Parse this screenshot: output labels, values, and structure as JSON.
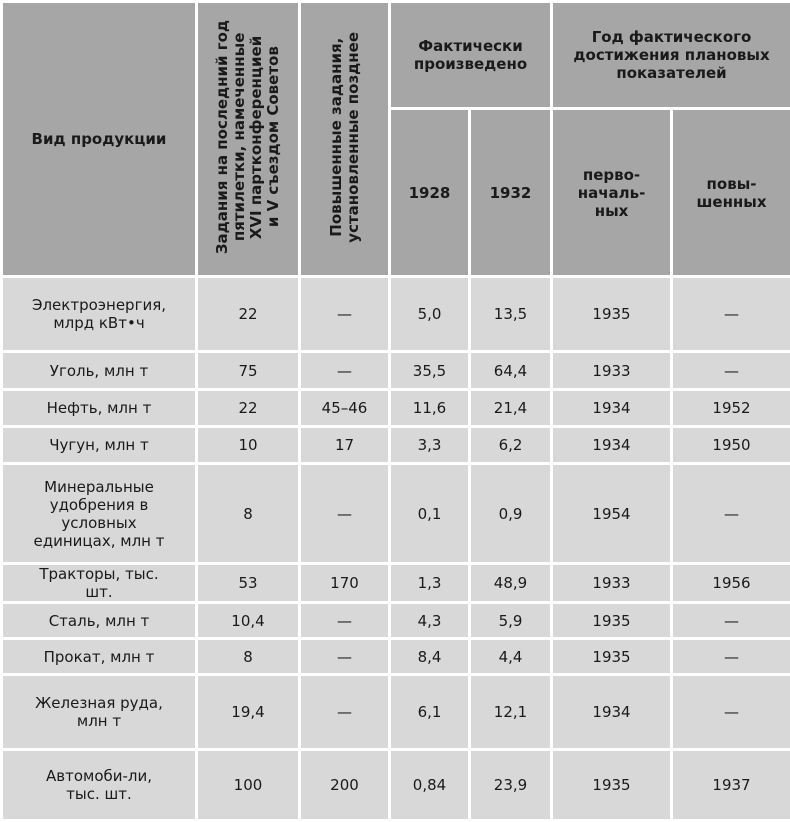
{
  "header": {
    "product": "Вид продукции",
    "plan_lines": [
      "Задания на последний год",
      "пятилетки, намеченные",
      "XVI партконференцией",
      "и V съездом Советов"
    ],
    "raised_lines": [
      "Повышенные задания,",
      "установленные позднее"
    ],
    "actual": "Фактически произведено",
    "y1928": "1928",
    "y1932": "1932",
    "achieved": "Год фактического достижения плановых показателей",
    "initial": "перво-началь-ных",
    "raised": "повы-шенных"
  },
  "rows": [
    {
      "name": "Электроэнергия, млрд кВт•ч",
      "plan": "22",
      "raised": "—",
      "a1928": "5,0",
      "a1932": "13,5",
      "y_init": "1935",
      "y_raised": "—"
    },
    {
      "name": "Уголь, млн т",
      "plan": "75",
      "raised": "—",
      "a1928": "35,5",
      "a1932": "64,4",
      "y_init": "1933",
      "y_raised": "—"
    },
    {
      "name": "Нефть, млн т",
      "plan": "22",
      "raised": "45–46",
      "a1928": "11,6",
      "a1932": "21,4",
      "y_init": "1934",
      "y_raised": "1952"
    },
    {
      "name": "Чугун, млн т",
      "plan": "10",
      "raised": "17",
      "a1928": "3,3",
      "a1932": "6,2",
      "y_init": "1934",
      "y_raised": "1950"
    },
    {
      "name": "Минеральные удобрения в условных единицах, млн т",
      "plan": "8",
      "raised": "—",
      "a1928": "0,1",
      "a1932": "0,9",
      "y_init": "1954",
      "y_raised": "—"
    },
    {
      "name": "Тракторы, тыс. шт.",
      "plan": "53",
      "raised": "170",
      "a1928": "1,3",
      "a1932": "48,9",
      "y_init": "1933",
      "y_raised": "1956"
    },
    {
      "name": "Сталь, млн т",
      "plan": "10,4",
      "raised": "—",
      "a1928": "4,3",
      "a1932": "5,9",
      "y_init": "1935",
      "y_raised": "—"
    },
    {
      "name": "Прокат, млн т",
      "plan": "8",
      "raised": "—",
      "a1928": "8,4",
      "a1932": "4,4",
      "y_init": "1935",
      "y_raised": "—"
    },
    {
      "name": "Железная руда, млн т",
      "plan": "19,4",
      "raised": "—",
      "a1928": "6,1",
      "a1932": "12,1",
      "y_init": "1934",
      "y_raised": "—"
    },
    {
      "name": "Автомоби-ли, тыс. шт.",
      "plan": "100",
      "raised": "200",
      "a1928": "0,84",
      "a1932": "23,9",
      "y_init": "1935",
      "y_raised": "1937"
    }
  ]
}
